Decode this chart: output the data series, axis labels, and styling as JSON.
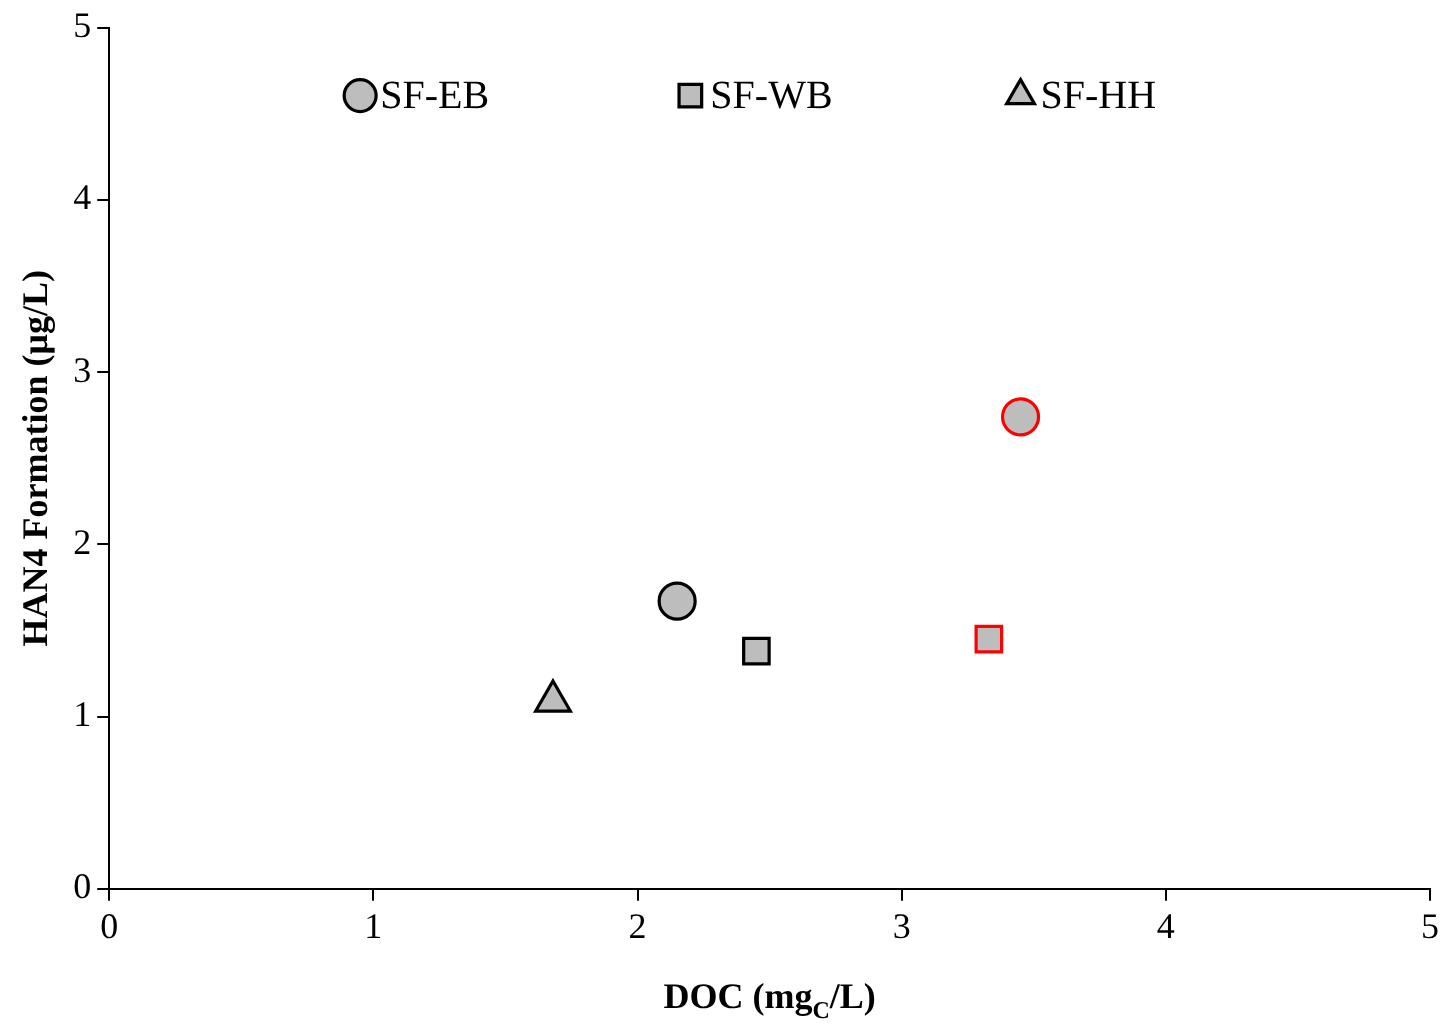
{
  "chart_data": {
    "type": "scatter",
    "xlabel": "DOC (mg$_{C}$/L)",
    "ylabel": "HAN4 Formation (μg/L)",
    "xlim": [
      0,
      5
    ],
    "xticks": [
      0,
      1,
      2,
      3,
      4,
      5
    ],
    "ylim": [
      0,
      5
    ],
    "yticks": [
      0,
      1,
      2,
      3,
      4,
      5
    ],
    "grid": false,
    "legend": "top",
    "series": [
      {
        "name": "SF-EB",
        "marker": "circle",
        "color": "#bdbdbd",
        "colors": [
          "#000000",
          "#ff0000"
        ],
        "x": [
          2.15,
          3.45
        ],
        "values": [
          1.67,
          2.74
        ]
      },
      {
        "name": "SF-WB",
        "marker": "square",
        "color": "#bdbdbd",
        "colors": [
          "#000000",
          "#ff0000"
        ],
        "x": [
          2.45,
          3.33
        ],
        "values": [
          1.38,
          1.45
        ]
      },
      {
        "name": "SF-HH",
        "marker": "triangle",
        "color": "#bdbdbd",
        "colors": [
          "#000000"
        ],
        "x": [
          1.68
        ],
        "values": [
          1.09
        ]
      }
    ]
  }
}
